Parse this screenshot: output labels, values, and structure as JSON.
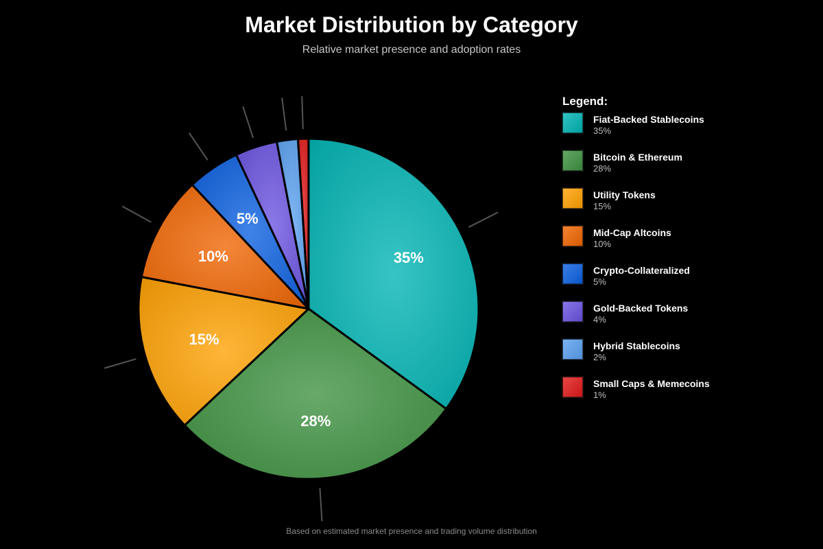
{
  "header": {
    "title": "Market Distribution by Category",
    "subtitle": "Relative market presence and adoption rates"
  },
  "footnote": "Based on estimated market presence and trading volume distribution",
  "legend": {
    "title": "Legend:",
    "placement": "right"
  },
  "chart_data": {
    "type": "pie",
    "title": "Market Distribution by Category",
    "subtitle": "Relative market presence and adoption rates",
    "unit": "%",
    "slices": [
      {
        "label": "Fiat-Backed Stablecoins",
        "value": 35,
        "display": "35%",
        "color": "#00b3b3",
        "show_label": true
      },
      {
        "label": "Bitcoin & Ethereum",
        "value": 28,
        "display": "28%",
        "color": "#3d9140",
        "show_label": true
      },
      {
        "label": "Utility Tokens",
        "value": 15,
        "display": "15%",
        "color": "#ffa000",
        "show_label": true
      },
      {
        "label": "Mid-Cap Altcoins",
        "value": 10,
        "display": "10%",
        "color": "#f06400",
        "show_label": true
      },
      {
        "label": "Crypto-Collateralized",
        "value": 5,
        "display": "5%",
        "color": "#0a5fe0",
        "show_label": true
      },
      {
        "label": "Gold-Backed Tokens",
        "value": 4,
        "display": "4%",
        "color": "#6a52e0",
        "show_label": false
      },
      {
        "label": "Hybrid Stablecoins",
        "value": 2,
        "display": "2%",
        "color": "#5aa0f0",
        "show_label": false
      },
      {
        "label": "Small Caps & Memecoins",
        "value": 1,
        "display": "1%",
        "color": "#e01818",
        "show_label": false
      }
    ]
  }
}
